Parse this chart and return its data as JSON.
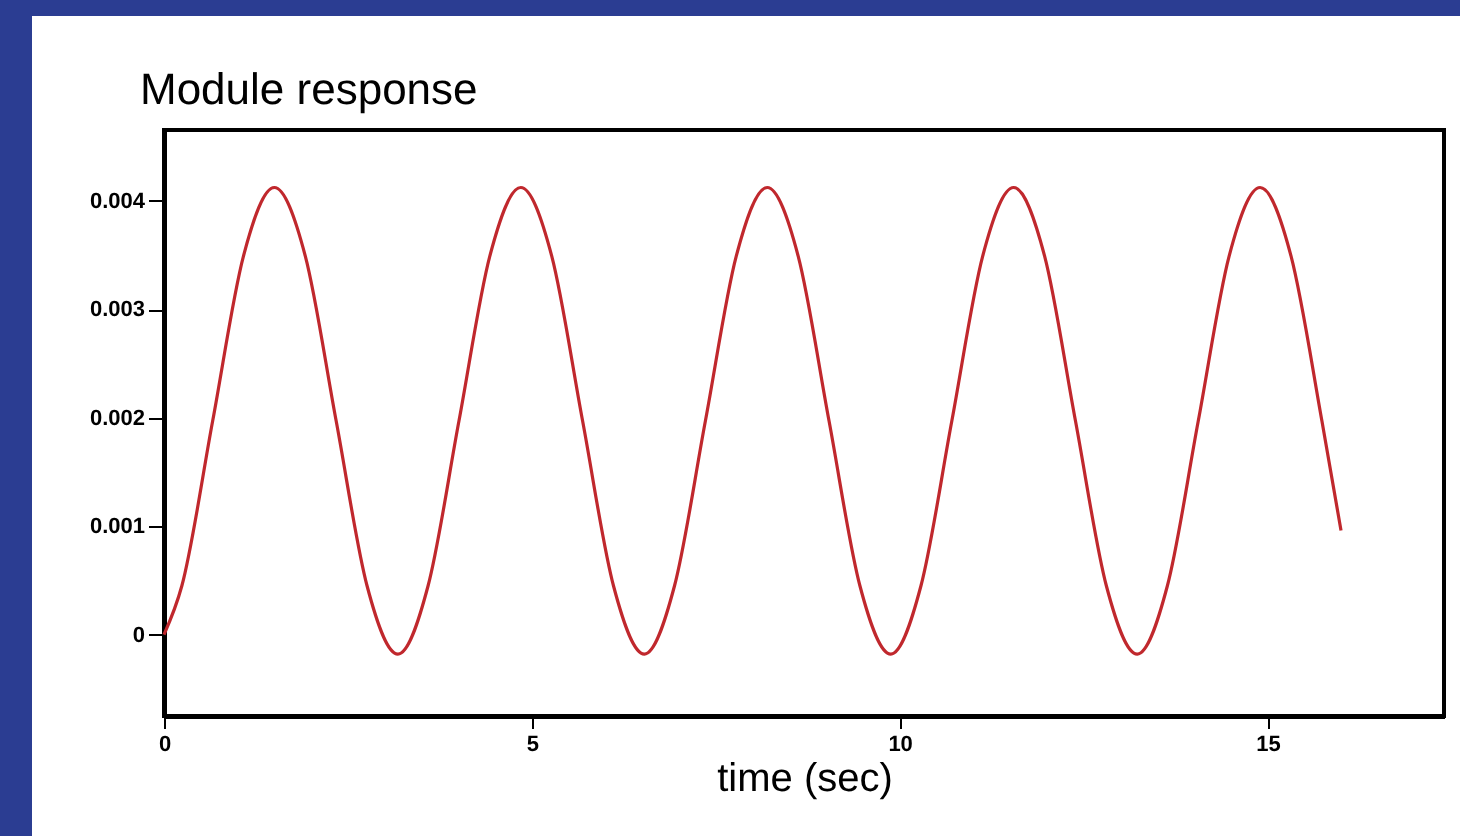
{
  "chart_data": {
    "type": "line",
    "title": "Module response",
    "xlabel": "time (sec)",
    "x": [
      0,
      0.243,
      0.662,
      1.081,
      1.5,
      1.92,
      2.34,
      2.76,
      3.18,
      3.59,
      4.01,
      4.43,
      4.85,
      5.27,
      5.69,
      6.11,
      6.53,
      6.94,
      7.36,
      7.78,
      8.2,
      8.62,
      9.04,
      9.46,
      9.88,
      10.29,
      10.71,
      11.13,
      11.55,
      11.97,
      12.39,
      12.81,
      13.23,
      13.64,
      14.06,
      14.48,
      14.9,
      15.32,
      15.74,
      16.0
    ],
    "series": [
      {
        "color": "#c0282d",
        "values": [
          0,
          0.00045,
          0.00197,
          0.00349,
          0.00412,
          0.00349,
          0.00197,
          0.00045,
          -0.00018,
          0.00045,
          0.00197,
          0.00349,
          0.00412,
          0.00349,
          0.00197,
          0.00045,
          -0.00018,
          0.00045,
          0.00197,
          0.00349,
          0.00412,
          0.00349,
          0.00197,
          0.00045,
          -0.00018,
          0.00045,
          0.00197,
          0.00349,
          0.00412,
          0.00349,
          0.00197,
          0.00045,
          -0.00018,
          0.00045,
          0.00197,
          0.00349,
          0.00412,
          0.00349,
          0.00197,
          0.00096
        ]
      }
    ],
    "xlim": [
      0,
      17.4
    ],
    "xticks": [
      0,
      5,
      10,
      15
    ],
    "ylim": [
      -0.00075,
      0.00465
    ],
    "yticks": [
      0,
      0.001,
      0.002,
      0.003,
      0.004
    ],
    "grid": false,
    "marker": "none",
    "line_style": "solid"
  }
}
